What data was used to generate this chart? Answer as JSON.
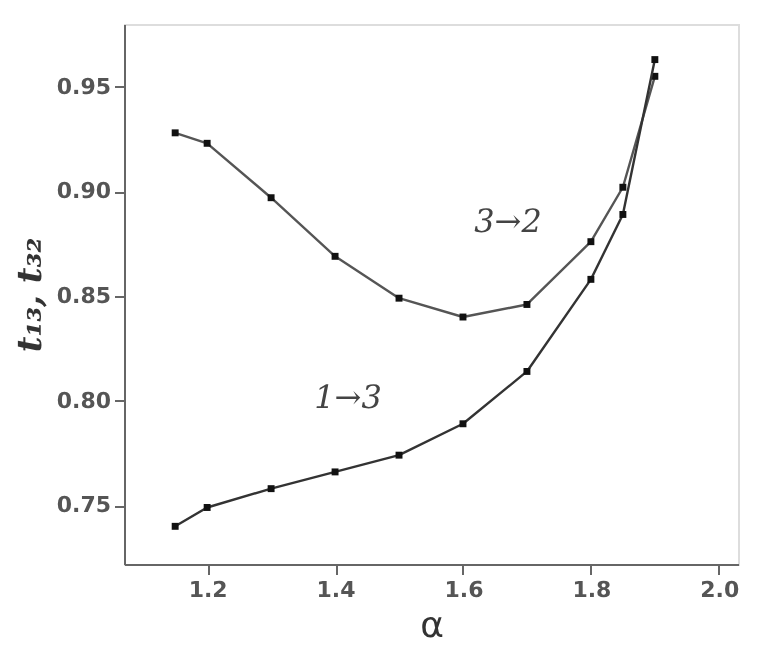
{
  "chart_data": {
    "type": "line",
    "xlabel": "α",
    "ylabel": "t₁₃, t₃₂",
    "series": [
      {
        "color": "#555555",
        "x": [
          1.15,
          1.2,
          1.3,
          1.4,
          1.5,
          1.6,
          1.7,
          1.8,
          1.85,
          1.9
        ],
        "values": [
          0.928,
          0.923,
          0.897,
          0.869,
          0.849,
          0.84,
          0.846,
          0.876,
          0.902,
          0.955
        ]
      },
      {
        "color": "#333333",
        "x": [
          1.15,
          1.2,
          1.3,
          1.4,
          1.5,
          1.6,
          1.7,
          1.8,
          1.85,
          1.9
        ],
        "values": [
          0.74,
          0.749,
          0.758,
          0.766,
          0.774,
          0.789,
          0.814,
          0.858,
          0.889,
          0.963
        ]
      }
    ],
    "annotations": [
      "3→2",
      "1→3"
    ],
    "xlim": [
      1.07,
      2.03
    ],
    "xticks": [
      {
        "value": 1.2,
        "label": "1.2"
      },
      {
        "value": 1.4,
        "label": "1.4"
      },
      {
        "value": 1.6,
        "label": "1.6"
      },
      {
        "value": 1.8,
        "label": "1.8"
      },
      {
        "value": 2.0,
        "label": "2.0"
      }
    ],
    "ylim": [
      0.722,
      0.98
    ],
    "yticks": [
      {
        "value": 0.75,
        "label": "0.75"
      },
      {
        "value": 0.8,
        "label": "0.80"
      },
      {
        "value": 0.85,
        "label": "0.85"
      },
      {
        "value": 0.9,
        "label": "0.90"
      },
      {
        "value": 0.95,
        "label": "0.95"
      }
    ],
    "marker": "square",
    "grid": false
  }
}
